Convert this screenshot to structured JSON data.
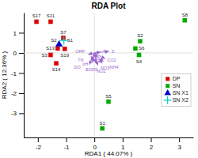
{
  "chart_data": {
    "type": "scatter",
    "title": "RDA Plot",
    "x_label": "RDA1 ( 44.07% )",
    "y_label": "RDA2 ( 12.36% )",
    "xlim": [
      -2.5,
      3.5
    ],
    "ylim": [
      -4.2,
      2.0
    ],
    "xticks": [
      -2,
      -1,
      0,
      1,
      2,
      3
    ],
    "yticks": [
      -3,
      -2,
      -1,
      0,
      1
    ],
    "legend": "right",
    "series": [
      {
        "name": "DP",
        "color": "#dd0000",
        "marker": "square",
        "x": [
          -2.05,
          -1.55,
          -1.1,
          -1.05,
          -1.3,
          -1.55,
          -1.35
        ],
        "y": [
          1.55,
          1.55,
          0.75,
          0.2,
          0.22,
          -0.1,
          -0.52
        ],
        "labels": [
          "S17",
          "S11",
          "S7",
          "S19",
          "S13",
          "S3",
          "S14"
        ]
      },
      {
        "name": "SN",
        "color": "#00aa00",
        "marker": "square",
        "x": [
          3.2,
          1.62,
          1.45,
          1.58,
          0.5,
          0.28
        ],
        "y": [
          1.62,
          0.58,
          0.22,
          -0.1,
          -2.42,
          -3.75
        ],
        "labels": [
          "S8",
          "S2",
          "S6",
          "S4",
          "S5",
          "S1"
        ]
      },
      {
        "name": "SN X1",
        "color": "#0000cc",
        "marker": "triangle",
        "x": [
          -1.25
        ],
        "y": [
          0.42
        ],
        "labels": [
          "S2"
        ]
      },
      {
        "name": "SN X2",
        "color": "#00cccc",
        "marker": "plus",
        "x": [
          -1.08
        ],
        "y": [
          0.62
        ],
        "labels": [
          "S1"
        ]
      }
    ],
    "vectors": {
      "color": "#9966cc",
      "origin": [
        0.0,
        0.0
      ],
      "items": [
        {
          "label": "S",
          "dx": 0.52,
          "dy": 0.08
        },
        {
          "label": "CO2",
          "dx": 0.38,
          "dy": -0.3
        },
        {
          "label": "NO3",
          "dx": 0.28,
          "dy": -0.52
        },
        {
          "label": "BOD5",
          "dx": 0.12,
          "dy": -0.62
        },
        {
          "label": "pH",
          "dx": -0.06,
          "dy": -0.48
        },
        {
          "label": "DO",
          "dx": -0.18,
          "dy": -0.58
        },
        {
          "label": "TN",
          "dx": -0.12,
          "dy": -0.38
        },
        {
          "label": "TP",
          "dx": 0.08,
          "dy": -0.28
        },
        {
          "label": "T",
          "dx": 0.22,
          "dy": 0.04
        },
        {
          "label": "ORP",
          "dx": -0.22,
          "dy": -0.08
        },
        {
          "label": "NH4",
          "dx": 0.32,
          "dy": -0.42
        },
        {
          "label": "NO2",
          "dx": 0.06,
          "dy": -0.52
        }
      ]
    }
  }
}
